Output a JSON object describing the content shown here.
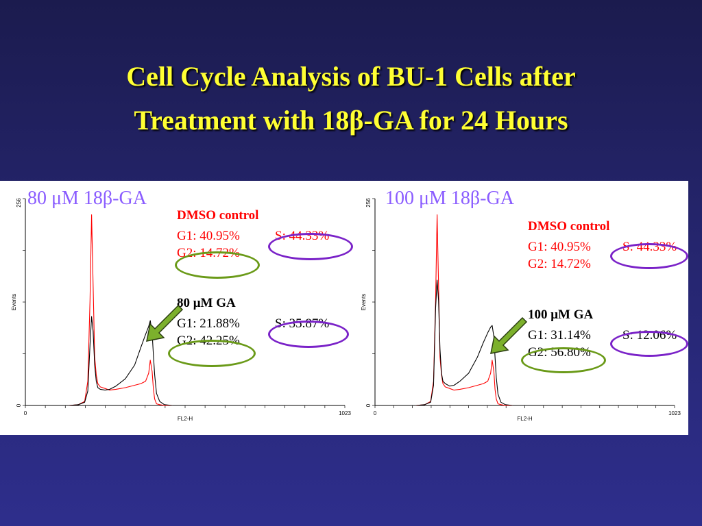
{
  "title_line1": "Cell Cycle Analysis of BU-1 Cells after",
  "title_line2": "Treatment with 18β-GA for 24 Hours",
  "panels": [
    {
      "heading": "80 μM 18β-GA",
      "control": {
        "label": "DMSO control",
        "g1": "G1: 40.95%",
        "s": "S: 44.33%",
        "g2": "G2: 14.72%"
      },
      "treated": {
        "label": "80 μM GA",
        "g1": "G1: 21.88%",
        "s": "S: 35.87%",
        "g2": "G2: 42.25%"
      }
    },
    {
      "heading": "100 μM 18β-GA",
      "control": {
        "label": "DMSO control",
        "g1": "G1: 40.95%",
        "s": "S: 44.33%",
        "g2": "G2: 14.72%"
      },
      "treated": {
        "label": "100 μM GA",
        "g1": "G1: 31.14%",
        "s": "S: 12.06%",
        "g2": "G2: 56.80%"
      }
    }
  ],
  "chart_data": [
    {
      "type": "line",
      "xlabel": "FL2-H",
      "ylabel": "Events",
      "xlim": [
        0,
        1023
      ],
      "ylim": [
        0,
        256
      ],
      "x_ticks": [
        "0",
        "1023"
      ],
      "y_ticks": [
        "0",
        "256"
      ],
      "series": [
        {
          "name": "DMSO control",
          "color": "#ff0000",
          "x": [
            140,
            170,
            190,
            200,
            207,
            212,
            217,
            222,
            227,
            232,
            240,
            255,
            270,
            290,
            320,
            350,
            370,
            385,
            395,
            400,
            406,
            410,
            414,
            420,
            430,
            445,
            470
          ],
          "y": [
            0,
            1,
            5,
            30,
            130,
            236,
            150,
            60,
            38,
            27,
            23,
            21,
            19,
            20,
            22,
            25,
            27,
            30,
            40,
            56,
            42,
            20,
            8,
            2,
            1,
            0,
            0
          ]
        },
        {
          "name": "80 μM GA",
          "color": "#000000",
          "x": [
            140,
            170,
            190,
            200,
            207,
            212,
            217,
            222,
            227,
            232,
            240,
            255,
            270,
            290,
            320,
            350,
            370,
            385,
            395,
            400,
            406,
            410,
            414,
            420,
            430,
            445,
            470
          ],
          "y": [
            0,
            1,
            4,
            18,
            75,
            110,
            92,
            50,
            30,
            22,
            20,
            19,
            20,
            24,
            33,
            50,
            72,
            88,
            98,
            105,
            90,
            62,
            38,
            15,
            5,
            1,
            0
          ]
        }
      ]
    },
    {
      "type": "line",
      "xlabel": "FL2-H",
      "ylabel": "Events",
      "xlim": [
        0,
        1023
      ],
      "ylim": [
        0,
        256
      ],
      "x_ticks": [
        "0",
        "1023"
      ],
      "y_ticks": [
        "0",
        "256"
      ],
      "series": [
        {
          "name": "DMSO control",
          "color": "#ff0000",
          "x": [
            140,
            170,
            190,
            200,
            207,
            212,
            217,
            222,
            227,
            232,
            240,
            255,
            270,
            290,
            320,
            350,
            370,
            385,
            395,
            400,
            406,
            410,
            414,
            420,
            430,
            445,
            470
          ],
          "y": [
            0,
            1,
            5,
            30,
            130,
            236,
            150,
            60,
            38,
            27,
            23,
            21,
            19,
            20,
            22,
            25,
            27,
            30,
            40,
            56,
            42,
            20,
            8,
            2,
            1,
            0,
            0
          ]
        },
        {
          "name": "100 μM GA",
          "color": "#000000",
          "x": [
            140,
            170,
            190,
            200,
            207,
            212,
            217,
            222,
            227,
            232,
            240,
            255,
            270,
            290,
            320,
            350,
            370,
            385,
            395,
            400,
            406,
            410,
            414,
            420,
            430,
            445,
            470
          ],
          "y": [
            0,
            1,
            4,
            25,
            120,
            155,
            130,
            70,
            40,
            30,
            27,
            24,
            25,
            30,
            40,
            60,
            78,
            90,
            97,
            99,
            85,
            60,
            35,
            14,
            4,
            1,
            0
          ]
        }
      ]
    }
  ]
}
